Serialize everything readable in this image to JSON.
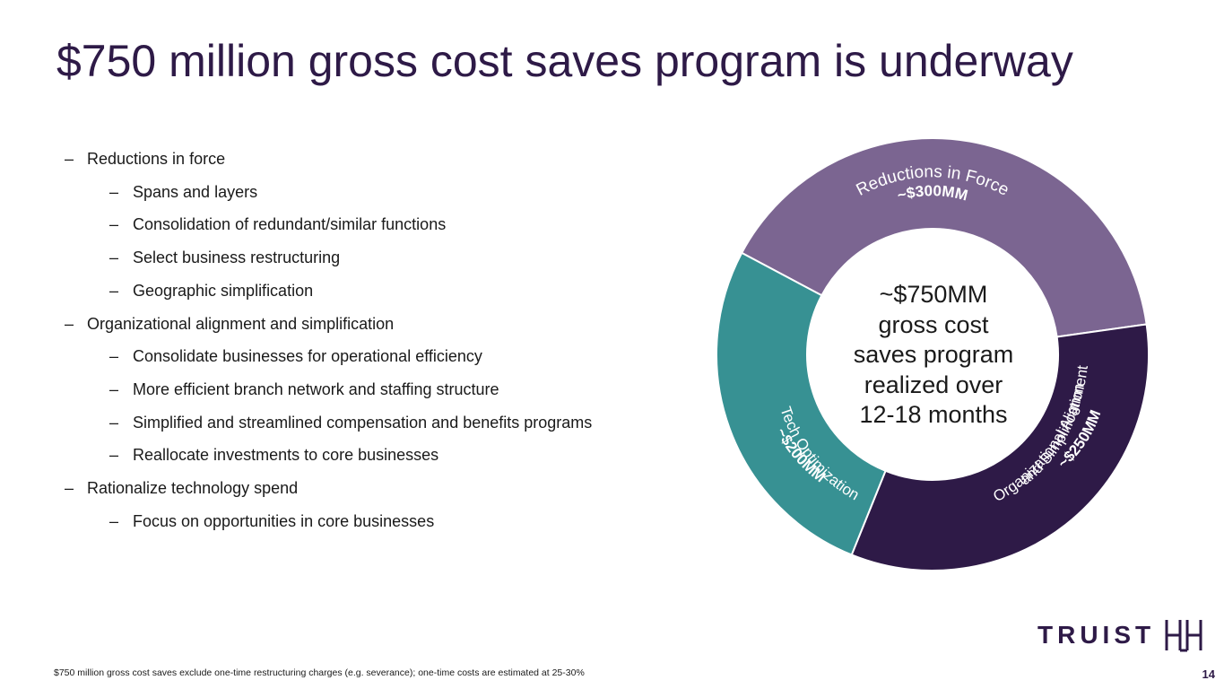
{
  "title": "$750 million gross cost saves program is underway",
  "bullets": [
    {
      "level": 1,
      "text": " Reductions in force"
    },
    {
      "level": 2,
      "text": "Spans and layers"
    },
    {
      "level": 2,
      "text": "Consolidation of redundant/similar functions"
    },
    {
      "level": 2,
      "text": "Select business restructuring"
    },
    {
      "level": 2,
      "text": "Geographic simplification"
    },
    {
      "level": 1,
      "text": "Organizational alignment and simplification"
    },
    {
      "level": 2,
      "text": "Consolidate businesses for operational efficiency"
    },
    {
      "level": 2,
      "text": "More efficient branch network and staffing structure"
    },
    {
      "level": 2,
      "text": "Simplified and streamlined compensation and benefits programs"
    },
    {
      "level": 2,
      "text": "Reallocate investments to core businesses"
    },
    {
      "level": 1,
      "text": "Rationalize technology spend"
    },
    {
      "level": 2,
      "text": "Focus on opportunities in core businesses"
    }
  ],
  "dash": "–",
  "chart_data": {
    "type": "pie",
    "variant": "donut",
    "title": "",
    "center_label": "~$750MM gross cost saves program realized over 12-18 months",
    "slices": [
      {
        "name": "Reductions in Force",
        "value": 300,
        "value_label": "~$300MM",
        "color": "#7b6591"
      },
      {
        "name": "Organizational Alignment and Simplification",
        "value": 250,
        "value_label": "~$250MM",
        "color": "#2e1a47"
      },
      {
        "name": "Tech Optimization",
        "value": 200,
        "value_label": "~$200MM",
        "color": "#379193"
      }
    ]
  },
  "center_lines": [
    "~$750MM",
    "gross cost",
    "saves program",
    "realized over",
    "12-18 months"
  ],
  "label_lines": {
    "rif_name": "Reductions in Force",
    "rif_value": "~$300MM",
    "org_line1": "Organizational Alignment",
    "org_line2": "and Simplification",
    "org_value": "~$250MM",
    "tech_name": "Tech Optimization",
    "tech_value": "~$200MM"
  },
  "footnote": "$750 million gross cost saves exclude one-time restructuring charges (e.g. severance); one-time costs are estimated at 25-30%",
  "page_number": "14",
  "logo": {
    "wordmark": "TRUIST",
    "color": "#2e1a47"
  }
}
